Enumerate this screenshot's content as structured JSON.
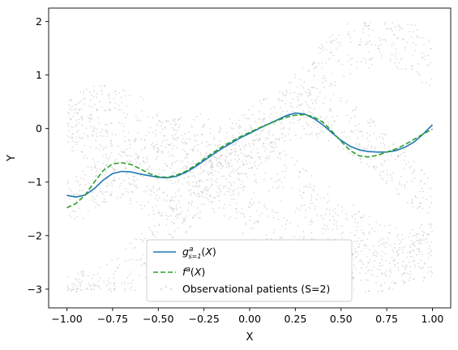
{
  "chart_data": {
    "type": "line",
    "xlabel": "X",
    "ylabel": "Y",
    "xlim": [
      -1.1,
      1.1
    ],
    "ylim": [
      -3.35,
      2.25
    ],
    "x_ticks": [
      -1.0,
      -0.75,
      -0.5,
      -0.25,
      0.0,
      0.25,
      0.5,
      0.75,
      1.0
    ],
    "x_tick_labels": [
      "−1.00",
      "−0.75",
      "−0.50",
      "−0.25",
      "0.00",
      "0.25",
      "0.50",
      "0.75",
      "1.00"
    ],
    "y_ticks": [
      -3,
      -2,
      -1,
      0,
      1,
      2
    ],
    "y_tick_labels": [
      "−3",
      "−2",
      "−1",
      "0",
      "1",
      "2"
    ],
    "grid": false,
    "legend_position": "lower-center",
    "series": [
      {
        "name": "g^a_{s=1}(X)",
        "style": "solid",
        "color": "#1f77b4",
        "x": [
          -1.0,
          -0.95,
          -0.9,
          -0.85,
          -0.8,
          -0.75,
          -0.7,
          -0.65,
          -0.6,
          -0.55,
          -0.5,
          -0.45,
          -0.4,
          -0.35,
          -0.3,
          -0.25,
          -0.2,
          -0.15,
          -0.1,
          -0.05,
          0.0,
          0.05,
          0.1,
          0.15,
          0.2,
          0.25,
          0.3,
          0.35,
          0.4,
          0.45,
          0.5,
          0.55,
          0.6,
          0.65,
          0.7,
          0.75,
          0.8,
          0.85,
          0.9,
          0.95,
          1.0
        ],
        "y": [
          -1.25,
          -1.28,
          -1.24,
          -1.12,
          -0.96,
          -0.84,
          -0.8,
          -0.81,
          -0.85,
          -0.88,
          -0.91,
          -0.92,
          -0.89,
          -0.82,
          -0.72,
          -0.6,
          -0.48,
          -0.37,
          -0.27,
          -0.17,
          -0.09,
          0.0,
          0.08,
          0.16,
          0.24,
          0.29,
          0.27,
          0.19,
          0.07,
          -0.08,
          -0.22,
          -0.33,
          -0.4,
          -0.43,
          -0.44,
          -0.44,
          -0.41,
          -0.35,
          -0.25,
          -0.1,
          0.07
        ]
      },
      {
        "name": "f^a(X)",
        "style": "dashed",
        "color": "#2ca02c",
        "x": [
          -1.0,
          -0.95,
          -0.9,
          -0.85,
          -0.8,
          -0.75,
          -0.7,
          -0.65,
          -0.6,
          -0.55,
          -0.5,
          -0.45,
          -0.4,
          -0.35,
          -0.3,
          -0.25,
          -0.2,
          -0.15,
          -0.1,
          -0.05,
          0.0,
          0.05,
          0.1,
          0.15,
          0.2,
          0.25,
          0.3,
          0.35,
          0.4,
          0.45,
          0.5,
          0.55,
          0.6,
          0.65,
          0.7,
          0.75,
          0.8,
          0.85,
          0.9,
          0.95,
          1.0
        ],
        "y": [
          -1.48,
          -1.4,
          -1.24,
          -1.0,
          -0.78,
          -0.66,
          -0.64,
          -0.67,
          -0.75,
          -0.84,
          -0.9,
          -0.91,
          -0.87,
          -0.8,
          -0.69,
          -0.57,
          -0.45,
          -0.34,
          -0.24,
          -0.15,
          -0.07,
          0.01,
          0.08,
          0.15,
          0.21,
          0.25,
          0.26,
          0.22,
          0.12,
          -0.05,
          -0.24,
          -0.41,
          -0.51,
          -0.53,
          -0.5,
          -0.44,
          -0.38,
          -0.3,
          -0.2,
          -0.1,
          -0.01
        ]
      },
      {
        "name": "Observational patients (S=2)",
        "style": "scatter",
        "color": "#808080",
        "description_bands": "scatter drawn procedurally"
      }
    ]
  }
}
